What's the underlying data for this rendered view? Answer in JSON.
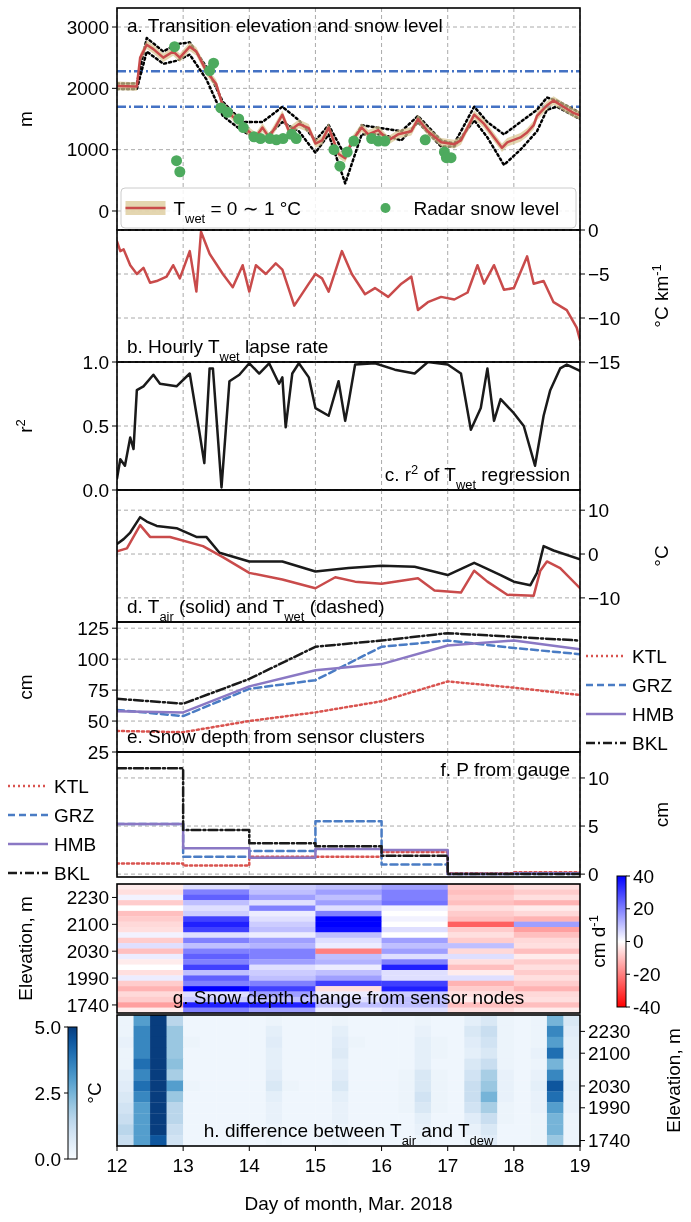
{
  "chart_data": [
    {
      "type": "line",
      "title": "a. Transition elevation and snow level",
      "ylabel": "m",
      "xlim": [
        12,
        19
      ],
      "xticks": [
        12,
        13,
        14,
        15,
        16,
        17,
        18,
        19
      ],
      "ylim": [
        -310,
        3310
      ],
      "yticks": [
        0,
        1000,
        2000,
        3000
      ],
      "grid": true,
      "tick_labels": "y",
      "legend": "bottom",
      "ref_lines": [
        {
          "axis": "y",
          "value": 2280,
          "color": "#4472c4",
          "line_style": "dashdot"
        },
        {
          "axis": "y",
          "value": 1700,
          "color": "#4472c4",
          "line_style": "dashdot"
        }
      ],
      "series": [
        {
          "color": "#000000",
          "line_style": "dotted",
          "x": [
            12,
            12.3,
            12.45,
            12.7,
            12.9,
            13.1,
            13.35,
            13.6,
            13.9,
            14.2,
            14.5,
            14.75,
            15,
            15.2,
            15.45,
            15.7,
            16,
            16.3,
            16.55,
            16.9,
            17.1,
            17.4,
            17.6,
            17.85,
            18.1,
            18.35,
            18.5,
            18.65,
            19
          ],
          "values": [
            2080,
            2080,
            2820,
            2600,
            2720,
            2750,
            2350,
            1780,
            1450,
            1450,
            1700,
            1480,
            1150,
            1400,
            900,
            1400,
            1350,
            1300,
            1550,
            1150,
            1100,
            1700,
            1450,
            1250,
            1450,
            1650,
            1850,
            1800,
            1600
          ]
        },
        {
          "color": "#000000",
          "line_style": "dotted",
          "x": [
            12,
            12.3,
            12.45,
            12.7,
            12.9,
            13.1,
            13.35,
            13.6,
            13.9,
            14.2,
            14.5,
            14.75,
            15,
            15.2,
            15.45,
            15.7,
            16,
            16.3,
            16.55,
            16.9,
            17.1,
            17.4,
            17.6,
            17.85,
            18.1,
            18.35,
            18.5,
            18.65,
            19
          ],
          "values": [
            1990,
            1990,
            2600,
            2400,
            2450,
            2550,
            2150,
            1550,
            1300,
            1150,
            1450,
            1300,
            950,
            1250,
            450,
            1250,
            1250,
            1150,
            1450,
            1050,
            1050,
            1480,
            1200,
            750,
            1000,
            1300,
            1650,
            1700,
            1500
          ]
        },
        {
          "name": "T$_{wet}$ = 0 ∼ 1 °C",
          "color": "#c94b4b",
          "x": [
            12,
            12.3,
            12.35,
            12.45,
            12.55,
            12.7,
            12.85,
            12.95,
            13.1,
            13.2,
            13.35,
            13.5,
            13.6,
            13.75,
            13.9,
            14,
            14.1,
            14.2,
            14.3,
            14.4,
            14.5,
            14.6,
            14.75,
            14.9,
            15,
            15.1,
            15.2,
            15.35,
            15.45,
            15.55,
            15.7,
            15.8,
            15.95,
            16.1,
            16.25,
            16.45,
            16.55,
            16.7,
            16.9,
            17.1,
            17.2,
            17.4,
            17.55,
            17.82,
            17.9,
            18.1,
            18.2,
            18.3,
            18.35,
            18.5,
            18.6,
            18.75,
            18.9,
            19
          ],
          "values": [
            2040,
            2030,
            2500,
            2710,
            2640,
            2500,
            2600,
            2500,
            2680,
            2600,
            2280,
            2070,
            1710,
            1540,
            1390,
            1290,
            1210,
            1360,
            1200,
            1380,
            1570,
            1300,
            1420,
            1350,
            1100,
            1150,
            1360,
            930,
            860,
            1140,
            1360,
            1250,
            1320,
            1150,
            1250,
            1300,
            1500,
            1300,
            1120,
            1090,
            1150,
            1570,
            1420,
            1030,
            1120,
            1200,
            1280,
            1400,
            1550,
            1720,
            1800,
            1700,
            1600,
            1560
          ],
          "lower": [
            1970,
            1960,
            2430,
            2640,
            2570,
            2430,
            2530,
            2430,
            2610,
            2530,
            2210,
            2000,
            1640,
            1470,
            1320,
            1220,
            1140,
            1290,
            1130,
            1310,
            1500,
            1230,
            1350,
            1280,
            1030,
            1080,
            1290,
            860,
            790,
            1070,
            1290,
            1180,
            1250,
            1080,
            1180,
            1230,
            1430,
            1230,
            1050,
            1020,
            1080,
            1500,
            1350,
            960,
            1050,
            1130,
            1210,
            1330,
            1480,
            1650,
            1730,
            1630,
            1530,
            1490
          ],
          "upper": [
            2110,
            2100,
            2570,
            2780,
            2710,
            2570,
            2670,
            2570,
            2750,
            2670,
            2350,
            2140,
            1780,
            1610,
            1460,
            1360,
            1280,
            1430,
            1270,
            1450,
            1640,
            1370,
            1490,
            1420,
            1170,
            1220,
            1430,
            1000,
            930,
            1210,
            1430,
            1320,
            1390,
            1220,
            1320,
            1370,
            1570,
            1370,
            1190,
            1160,
            1220,
            1640,
            1490,
            1100,
            1190,
            1270,
            1350,
            1470,
            1620,
            1790,
            1870,
            1770,
            1670,
            1630
          ]
        },
        {
          "type": "scatter",
          "name": "Radar snow level",
          "color": "#4daa5e",
          "x": [
            12.87,
            12.9,
            12.95,
            13.4,
            13.46,
            13.57,
            13.67,
            13.84,
            13.91,
            14.07,
            14.17,
            14.31,
            14.41,
            14.51,
            14.64,
            14.71,
            15.28,
            15.37,
            15.48,
            15.58,
            15.85,
            15.95,
            16.05,
            16.66,
            16.95,
            16.98,
            17.05
          ],
          "values": [
            2680,
            820,
            640,
            2290,
            2410,
            1680,
            1610,
            1500,
            1360,
            1210,
            1180,
            1180,
            1160,
            1180,
            1250,
            1180,
            1000,
            730,
            960,
            1140,
            1180,
            1140,
            1140,
            1160,
            960,
            870,
            870
          ]
        }
      ]
    },
    {
      "type": "line",
      "title": "b. Hourly T$_{wet}$ lapse rate",
      "y2label": "°C km$^{-1}$",
      "xlim": [
        12,
        19
      ],
      "xticks": [
        12,
        13,
        14,
        15,
        16,
        17,
        18,
        19
      ],
      "y2lim": [
        -15,
        0
      ],
      "y2ticks": [
        0,
        {
          "value": -5,
          "label": "−5"
        },
        {
          "value": -10,
          "label": "−10"
        },
        {
          "value": -15,
          "label": "−15"
        }
      ],
      "grid": true,
      "tick_labels": "y",
      "series": [
        {
          "axis": "y2",
          "color": "#c94b4b",
          "x": [
            12,
            12.05,
            12.1,
            12.2,
            12.3,
            12.4,
            12.5,
            12.6,
            12.75,
            12.85,
            12.95,
            13.1,
            13.2,
            13.27,
            13.4,
            13.6,
            13.75,
            13.9,
            14,
            14.1,
            14.25,
            14.4,
            14.5,
            14.68,
            14.9,
            15,
            15.1,
            15.2,
            15.4,
            15.55,
            15.75,
            15.9,
            16.1,
            16.3,
            16.45,
            16.55,
            16.7,
            16.9,
            17.1,
            17.3,
            17.45,
            17.55,
            17.7,
            17.85,
            18,
            18.2,
            18.3,
            18.45,
            18.6,
            18.8,
            18.95,
            19
          ],
          "values": [
            -1.3,
            -2.4,
            -2.2,
            -4,
            -5,
            -4.3,
            -6,
            -5.8,
            -5.3,
            -4,
            -5.5,
            -2.4,
            -7,
            -0.2,
            -2.7,
            -5,
            -6.5,
            -4,
            -7,
            -4,
            -5,
            -3.8,
            -4.5,
            -8.6,
            -6.1,
            -5,
            -5.5,
            -7,
            -2.4,
            -5,
            -7.3,
            -6.6,
            -7.6,
            -6.1,
            -5.3,
            -9.1,
            -8.2,
            -7.6,
            -7.9,
            -7.1,
            -4,
            -6.1,
            -4,
            -6.8,
            -6.6,
            -3,
            -6.1,
            -5.8,
            -8.2,
            -9.1,
            -11.1,
            -12.5
          ]
        }
      ]
    },
    {
      "type": "line",
      "title": "c. r$^{2}$ of T$_{wet}$ regression",
      "ylabel": "r$^{2}$",
      "xlim": [
        12,
        19
      ],
      "xticks": [
        12,
        13,
        14,
        15,
        16,
        17,
        18,
        19
      ],
      "ylim": [
        0,
        1
      ],
      "yticks": [
        {
          "value": 0,
          "label": "0.0"
        },
        {
          "value": 0.5,
          "label": "0.5"
        },
        {
          "value": 1,
          "label": "1.0"
        }
      ],
      "grid": true,
      "tick_labels": "y",
      "series": [
        {
          "color": "#1a1a1a",
          "x": [
            12,
            12.05,
            12.12,
            12.2,
            12.25,
            12.3,
            12.4,
            12.55,
            12.65,
            12.9,
            13.1,
            13.25,
            13.32,
            13.4,
            13.45,
            13.58,
            13.7,
            13.85,
            14,
            14.15,
            14.3,
            14.45,
            14.5,
            14.55,
            14.65,
            14.75,
            14.9,
            15,
            15.2,
            15.35,
            15.45,
            15.5,
            15.6,
            15.9,
            16.2,
            16.5,
            16.7,
            17,
            17.2,
            17.35,
            17.5,
            17.6,
            17.7,
            17.8,
            18,
            18.15,
            18.32,
            18.45,
            18.55,
            18.7,
            18.8,
            19
          ],
          "values": [
            0.09,
            0.24,
            0.19,
            0.41,
            0.32,
            0.78,
            0.81,
            0.9,
            0.83,
            0.81,
            0.91,
            0.44,
            0.21,
            0.95,
            0.95,
            0.02,
            0.85,
            0.9,
            0.99,
            0.91,
            0.99,
            0.83,
            0.88,
            0.49,
            0.91,
            0.99,
            0.88,
            0.64,
            0.58,
            0.85,
            0.54,
            0.68,
            0.98,
            0.99,
            0.94,
            0.91,
            1.0,
            0.98,
            0.91,
            0.47,
            0.64,
            0.95,
            0.54,
            0.71,
            0.6,
            0.5,
            0.19,
            0.58,
            0.78,
            0.95,
            0.98,
            0.93
          ]
        }
      ]
    },
    {
      "type": "line",
      "title": "d. T$_{air}$ (solid) and T$_{wet}$ (dashed)",
      "y2label": "°C",
      "xlim": [
        12,
        19
      ],
      "xticks": [
        12,
        13,
        14,
        15,
        16,
        17,
        18,
        19
      ],
      "y2lim": [
        -15.5,
        14.6
      ],
      "y2ticks": [
        {
          "value": -10,
          "label": "−10"
        },
        0,
        10
      ],
      "grid": true,
      "tick_labels": "y",
      "series": [
        {
          "axis": "y2",
          "color": "#1a1a1a",
          "x": [
            12,
            12.1,
            12.2,
            12.35,
            12.45,
            12.6,
            12.9,
            13.2,
            13.35,
            13.55,
            14,
            14.5,
            15,
            15.5,
            16,
            16.5,
            17,
            17.4,
            17.5,
            17.8,
            18,
            18.25,
            18.35,
            18.45,
            18.6,
            19
          ],
          "values": [
            2.3,
            3.4,
            4.9,
            8.4,
            7.4,
            6.4,
            5.9,
            3.9,
            3.9,
            0.3,
            -1.7,
            -1.7,
            -4,
            -3.2,
            -2.7,
            -2.9,
            -4.8,
            -2,
            -2.7,
            -4.8,
            -6.3,
            -7.1,
            -4.3,
            1.8,
            0.8,
            -1.2
          ]
        },
        {
          "axis": "y2",
          "color": "#c94b4b",
          "x": [
            12,
            12.15,
            12.35,
            12.5,
            12.8,
            13.3,
            13.6,
            14,
            14.5,
            15,
            15.3,
            15.6,
            16,
            16.55,
            16.8,
            17.2,
            17.4,
            17.6,
            17.9,
            18.3,
            18.4,
            18.5,
            18.7,
            19
          ],
          "values": [
            0.6,
            1.3,
            6.6,
            3.9,
            3.9,
            1.8,
            -0.7,
            -4.3,
            -5.8,
            -7.8,
            -5.3,
            -6.3,
            -6.8,
            -5.5,
            -8.3,
            -8.8,
            -3.8,
            -6.3,
            -9.3,
            -9.5,
            -3.8,
            -1.7,
            -3.2,
            -7.8
          ]
        }
      ]
    },
    {
      "type": "line",
      "title": "e. Snow depth from sensor clusters",
      "ylabel": "cm",
      "xlim": [
        12,
        19
      ],
      "xticks": [
        12,
        13,
        14,
        15,
        16,
        17,
        18,
        19
      ],
      "ylim": [
        25,
        130
      ],
      "yticks": [
        25,
        50,
        75,
        100,
        125
      ],
      "grid": true,
      "tick_labels": "y",
      "legend": "right",
      "x": [
        12,
        13,
        14,
        15,
        16,
        17,
        18,
        19
      ],
      "series": [
        {
          "name": "KTL",
          "color": "#d9534f",
          "line_style": "dotted",
          "values": [
            42,
            41,
            50,
            57,
            66,
            82,
            77,
            71
          ]
        },
        {
          "name": "GRZ",
          "color": "#4a7cc4",
          "line_style": "dashed",
          "values": [
            59,
            54,
            76,
            83,
            110,
            115,
            109,
            104
          ]
        },
        {
          "name": "HMB",
          "color": "#8a78c4",
          "line_style": "solid",
          "values": [
            58,
            57,
            78,
            91,
            96,
            111,
            115,
            108
          ]
        },
        {
          "name": "BKL",
          "color": "#1a1a1a",
          "line_style": "dashdot",
          "values": [
            68,
            64,
            84,
            110,
            115,
            121,
            118,
            115
          ]
        }
      ]
    },
    {
      "type": "step",
      "title": "f. P from gauge",
      "y2label": "cm",
      "xlim": [
        12,
        19
      ],
      "xticks": [
        12,
        13,
        14,
        15,
        16,
        17,
        18,
        19
      ],
      "y2lim": [
        -0.3,
        12.7
      ],
      "y2ticks": [
        0,
        5,
        10
      ],
      "grid": true,
      "tick_labels": "y",
      "legend": "left",
      "x": [
        12,
        13,
        14,
        15,
        16,
        17,
        18,
        19
      ],
      "series": [
        {
          "axis": "y2",
          "name": "KTL",
          "color": "#d9534f",
          "line_style": "dotted",
          "values": [
            1.1,
            0.9,
            1.8,
            1.8,
            2.3,
            0.1,
            0.2,
            0.2
          ]
        },
        {
          "axis": "y2",
          "name": "GRZ",
          "color": "#4a7cc4",
          "line_style": "dashed",
          "values": [
            5.2,
            1.8,
            2.4,
            5.5,
            1,
            0,
            0,
            0
          ]
        },
        {
          "axis": "y2",
          "name": "HMB",
          "color": "#8a78c4",
          "line_style": "solid",
          "values": [
            5.2,
            2.7,
            1.7,
            2.6,
            2.5,
            0,
            0.1,
            0.1
          ]
        },
        {
          "axis": "y2",
          "name": "BKL",
          "color": "#1a1a1a",
          "line_style": "dashdot",
          "values": [
            11,
            4.6,
            3.2,
            2.9,
            1.9,
            0,
            0,
            0
          ]
        }
      ]
    },
    {
      "type": "heatmap",
      "title": "g. Snow depth change from sensor nodes",
      "ylabel": "Elevation, m",
      "clabel": "cm d$^{-1}$",
      "xlim": [
        12,
        19
      ],
      "tick_labels": "y",
      "clim": [
        -40,
        40
      ],
      "cticks": [
        -40,
        -20,
        0,
        20,
        40
      ],
      "x": [
        12.5,
        13.5,
        14.5,
        15.5,
        16.5,
        17.5,
        18.5
      ],
      "y_categories": [
        null,
        null,
        "2230",
        null,
        null,
        null,
        null,
        "2100",
        null,
        null,
        null,
        null,
        "2030",
        null,
        null,
        null,
        null,
        "1990",
        null,
        null,
        null,
        null,
        "1740",
        null
      ],
      "cells": [
        [
          -3,
          5,
          8,
          10,
          15,
          -8,
          -5
        ],
        [
          -5,
          20,
          10,
          15,
          20,
          -10,
          -8
        ],
        [
          2,
          25,
          15,
          10,
          20,
          -8,
          -5
        ],
        [
          -8,
          10,
          5,
          15,
          22,
          -10,
          -12
        ],
        [
          0,
          5,
          20,
          5,
          2,
          -5,
          -3
        ],
        [
          -10,
          8,
          3,
          20,
          0,
          -8,
          -6
        ],
        [
          -8,
          30,
          5,
          40,
          2,
          -10,
          -12
        ],
        [
          -6,
          35,
          8,
          40,
          0,
          -25,
          15
        ],
        [
          -5,
          30,
          10,
          38,
          5,
          -8,
          -15
        ],
        [
          2,
          5,
          3,
          10,
          0,
          -5,
          -10
        ],
        [
          -8,
          20,
          15,
          5,
          15,
          -8,
          -6
        ],
        [
          5,
          10,
          12,
          3,
          10,
          10,
          -5
        ],
        [
          -10,
          20,
          20,
          -20,
          15,
          -6,
          -10
        ],
        [
          3,
          25,
          20,
          10,
          5,
          5,
          -3
        ],
        [
          -3,
          20,
          15,
          12,
          20,
          -5,
          -8
        ],
        [
          0,
          30,
          5,
          3,
          35,
          -10,
          -5
        ],
        [
          -5,
          10,
          8,
          10,
          5,
          -3,
          -8
        ],
        [
          3,
          25,
          10,
          15,
          5,
          5,
          -5
        ],
        [
          -8,
          20,
          20,
          30,
          30,
          -12,
          -8
        ],
        [
          -12,
          40,
          30,
          -5,
          35,
          -8,
          -12
        ],
        [
          -6,
          5,
          15,
          3,
          8,
          -5,
          -6
        ],
        [
          -8,
          8,
          10,
          5,
          10,
          -3,
          -5
        ],
        [
          -15,
          35,
          35,
          10,
          10,
          -10,
          -10
        ],
        [
          -3,
          20,
          15,
          3,
          5,
          -5,
          -3
        ]
      ]
    },
    {
      "type": "heatmap",
      "title": "h. difference between T$_{air}$ and T$_{dew}$",
      "xlabel": "Day of month, Mar. 2018",
      "y2label": "Elevation, m",
      "clabel": "°C",
      "xlim": [
        12,
        19
      ],
      "xticks": [
        12,
        13,
        14,
        15,
        16,
        17,
        18,
        19
      ],
      "clim": [
        0,
        5
      ],
      "cticks": [
        {
          "value": 0,
          "label": "0.0"
        },
        {
          "value": 2.5,
          "label": "2.5"
        },
        {
          "value": 5,
          "label": "5.0"
        }
      ],
      "x": [
        12.125,
        12.375,
        12.625,
        12.875,
        13.125,
        13.375,
        13.625,
        13.875,
        14.125,
        14.375,
        14.625,
        14.875,
        15.125,
        15.375,
        15.625,
        15.875,
        16.125,
        16.375,
        16.625,
        16.875,
        17.125,
        17.375,
        17.625,
        17.875,
        18.125,
        18.375,
        18.625,
        18.875
      ],
      "y_categories": [
        null,
        "2230",
        null,
        "2100",
        null,
        null,
        "2030",
        null,
        "1990",
        null,
        null,
        "1740"
      ],
      "cells": [
        [
          0.3,
          3,
          5,
          1.5,
          0.2,
          0.2,
          0.2,
          0.2,
          0.2,
          0.3,
          0.2,
          0.2,
          0.2,
          0.3,
          0.2,
          0.2,
          0.2,
          0.2,
          0.3,
          0.2,
          0.2,
          0.5,
          0.8,
          0.3,
          0.2,
          0.3,
          2.5,
          0.8
        ],
        [
          0.3,
          3.5,
          5,
          2,
          0.2,
          0.2,
          0.2,
          0.2,
          0.2,
          0.5,
          0.2,
          0.2,
          0.2,
          0.5,
          0.2,
          0.2,
          0.2,
          0.2,
          0.4,
          0.2,
          0.2,
          0.8,
          1.2,
          0.3,
          0.2,
          0.3,
          3.5,
          0.6
        ],
        [
          0.4,
          3.5,
          5,
          2,
          0.3,
          0.2,
          0.2,
          0.2,
          0.2,
          0.6,
          0.2,
          0.2,
          0.2,
          0.6,
          0.3,
          0.2,
          0.2,
          0.2,
          0.5,
          0.3,
          0.2,
          0.6,
          1,
          0.3,
          0.2,
          0.3,
          3,
          0.5
        ],
        [
          0.3,
          3.5,
          5,
          2,
          0.2,
          0.2,
          0.2,
          0.2,
          0.2,
          0.5,
          0.2,
          0.2,
          0.2,
          0.7,
          0.2,
          0.2,
          0.2,
          0.2,
          0.5,
          0.3,
          0.2,
          0.5,
          0.8,
          0.3,
          0.2,
          0.4,
          4,
          0.5
        ],
        [
          0.3,
          4,
          5,
          2.2,
          0.2,
          0.2,
          0.2,
          0.2,
          0.2,
          0.5,
          0.2,
          0.2,
          0.2,
          0.5,
          0.2,
          0.2,
          0.2,
          0.2,
          0.5,
          0.2,
          0.2,
          0.8,
          1.2,
          0.3,
          0.2,
          0.3,
          2.5,
          0.4
        ],
        [
          0.5,
          3.5,
          5,
          1.8,
          0.2,
          0.2,
          0.2,
          0.2,
          0.2,
          0.6,
          0.2,
          0.2,
          0.2,
          0.6,
          0.2,
          0.2,
          0.2,
          0.3,
          0.8,
          0.3,
          0.2,
          1,
          1.8,
          0.4,
          0.2,
          0.4,
          3.5,
          0.4
        ],
        [
          0.6,
          4,
          5,
          3,
          0.3,
          0.2,
          0.2,
          0.2,
          0.2,
          0.8,
          0.3,
          0.2,
          0.2,
          0.8,
          0.2,
          0.2,
          0.2,
          0.3,
          0.8,
          0.3,
          0.2,
          1.2,
          2,
          0.4,
          0.2,
          0.5,
          4.5,
          0.5
        ],
        [
          0.8,
          3.5,
          5,
          2,
          0.2,
          0.2,
          0.2,
          0.2,
          0.2,
          0.5,
          0.2,
          0.2,
          0.2,
          0.5,
          0.2,
          0.2,
          0.2,
          0.3,
          1,
          0.3,
          0.2,
          1.2,
          2.5,
          0.4,
          0.2,
          0.4,
          4,
          0.4
        ],
        [
          1,
          3,
          5,
          1.5,
          0.2,
          0.2,
          0.2,
          0.2,
          0.2,
          0.4,
          0.2,
          0.2,
          0.2,
          0.4,
          0.2,
          0.2,
          0.2,
          0.3,
          0.8,
          0.3,
          0.2,
          1,
          1.8,
          0.3,
          0.2,
          0.4,
          3,
          0.4
        ],
        [
          1.2,
          3,
          5,
          1.5,
          0.2,
          0.2,
          0.2,
          0.2,
          0.2,
          0.4,
          0.2,
          0.2,
          0.2,
          0.4,
          0.2,
          0.2,
          0.2,
          0.2,
          0.5,
          0.2,
          0.2,
          0.6,
          1.2,
          0.3,
          0.2,
          0.3,
          2.5,
          0.3
        ],
        [
          1.5,
          3,
          5,
          1.2,
          0.2,
          0.2,
          0.2,
          0.2,
          0.2,
          0.3,
          0.2,
          0.2,
          0.2,
          0.3,
          0.2,
          0.2,
          0.2,
          0.2,
          0.4,
          0.2,
          0.2,
          0.4,
          0.8,
          0.2,
          0.2,
          0.3,
          2.5,
          0.3
        ],
        [
          1.2,
          3,
          4.5,
          1,
          0.2,
          0.2,
          0.2,
          0.2,
          0.2,
          0.3,
          0.2,
          0.2,
          0.2,
          0.3,
          0.2,
          0.2,
          0.2,
          0.2,
          0.3,
          0.2,
          0.2,
          0.3,
          0.6,
          0.2,
          0.2,
          0.3,
          2,
          0.3
        ]
      ]
    }
  ]
}
